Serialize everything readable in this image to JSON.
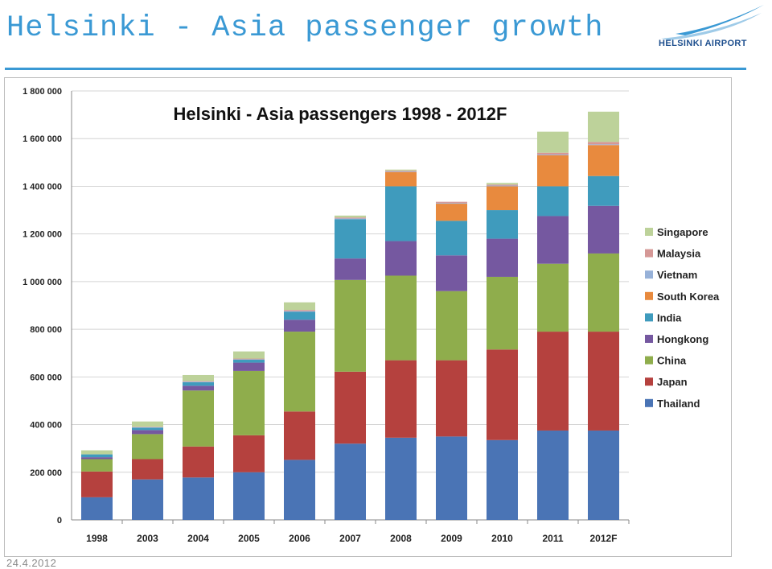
{
  "slide": {
    "title": "Helsinki - Asia passenger growth",
    "logo_text": "HELSINKI AIRPORT",
    "date": "24.4.2012"
  },
  "colors": {
    "accent": "#3a99d4",
    "logo_blue": "#1e4f8e"
  },
  "chart_data": {
    "type": "bar",
    "stacked": true,
    "title": "Helsinki - Asia passengers 1998 - 2012F",
    "xlabel": "",
    "ylabel": "",
    "ylim": [
      0,
      1800000
    ],
    "yticks": [
      0,
      200000,
      400000,
      600000,
      800000,
      1000000,
      1200000,
      1400000,
      1600000,
      1800000
    ],
    "ytick_labels": [
      "0",
      "200 000",
      "400 000",
      "600 000",
      "800 000",
      "1 000 000",
      "1 200 000",
      "1 400 000",
      "1 600 000",
      "1 800 000"
    ],
    "grid": true,
    "legend_position": "right",
    "categories": [
      "1998",
      "2003",
      "2004",
      "2005",
      "2006",
      "2007",
      "2008",
      "2009",
      "2010",
      "2011",
      "2012F"
    ],
    "series": [
      {
        "name": "Thailand",
        "color": "#4a74b5",
        "values": [
          95000,
          170000,
          178000,
          200000,
          252000,
          320000,
          345000,
          350000,
          335000,
          375000,
          375000
        ]
      },
      {
        "name": "Japan",
        "color": "#b5413e",
        "values": [
          108000,
          85000,
          130000,
          155000,
          203000,
          302000,
          325000,
          320000,
          380000,
          415000,
          415000
        ]
      },
      {
        "name": "China",
        "color": "#8fad4c",
        "values": [
          52000,
          105000,
          235000,
          270000,
          335000,
          385000,
          355000,
          290000,
          305000,
          285000,
          328000
        ]
      },
      {
        "name": "Hongkong",
        "color": "#7558a0",
        "values": [
          8000,
          17000,
          20000,
          35000,
          50000,
          90000,
          145000,
          150000,
          160000,
          200000,
          200000
        ]
      },
      {
        "name": "India",
        "color": "#3f9bbd",
        "values": [
          12000,
          10000,
          15000,
          12000,
          33000,
          165000,
          230000,
          145000,
          120000,
          125000,
          125000
        ]
      },
      {
        "name": "South Korea",
        "color": "#e88a3e",
        "values": [
          0,
          0,
          0,
          0,
          0,
          0,
          60000,
          72000,
          100000,
          130000,
          130000
        ]
      },
      {
        "name": "Vietnam",
        "color": "#97b1d8",
        "values": [
          0,
          2000,
          2000,
          2000,
          3000,
          3000,
          3000,
          3000,
          3000,
          3000,
          3000
        ]
      },
      {
        "name": "Malaysia",
        "color": "#d59896",
        "values": [
          0,
          2000,
          3000,
          3000,
          5000,
          4000,
          3000,
          5000,
          4000,
          8000,
          10000
        ]
      },
      {
        "name": "Singapore",
        "color": "#bdd29a",
        "values": [
          17000,
          22000,
          25000,
          30000,
          32000,
          8000,
          4000,
          0,
          7000,
          88000,
          127000
        ]
      }
    ]
  }
}
